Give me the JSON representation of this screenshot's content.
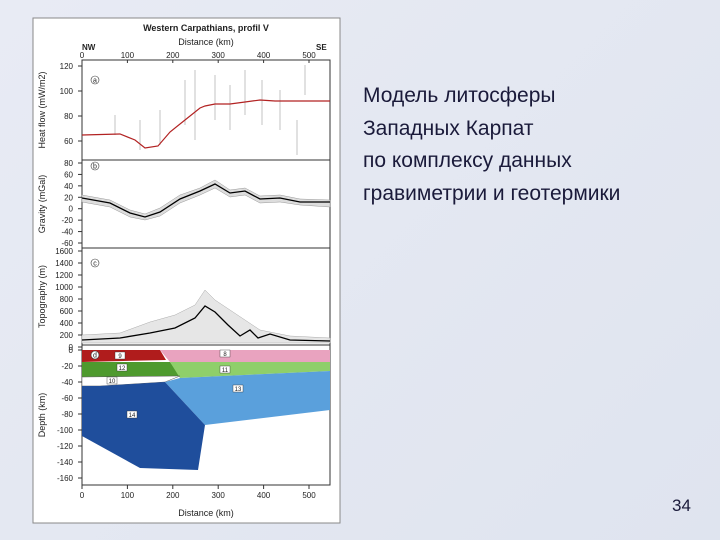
{
  "figure": {
    "title": "Western Carpathians, profil V",
    "top_label": "Distance (km)",
    "nw": "NW",
    "se": "SE",
    "xticks": [
      0,
      100,
      200,
      300,
      400,
      500
    ],
    "bottom_label": "Distance (km)",
    "panels": [
      {
        "letter": "a",
        "ylabel": "Heat flow (mW/m2)",
        "yticks": [
          120,
          100,
          80,
          60
        ]
      },
      {
        "letter": "b",
        "ylabel": "Gravity (mGal)",
        "yticks": [
          80,
          60,
          40,
          20,
          0,
          -20,
          -40,
          -60
        ]
      },
      {
        "letter": "c",
        "ylabel": "Topography (m)",
        "yticks": [
          1600,
          1400,
          1200,
          1000,
          800,
          600,
          400,
          200,
          0
        ]
      },
      {
        "letter": "d",
        "ylabel": "Depth (km)",
        "yticks": [
          0,
          -20,
          -40,
          -60,
          -80,
          -100,
          -120,
          -140,
          -160
        ],
        "bodies": [
          "9",
          "8",
          "12",
          "11",
          "10",
          "13",
          "14"
        ]
      }
    ]
  },
  "text": {
    "lines": [
      "Модель литосферы",
      "Западных Карпат",
      "по комплексу данных",
      "гравиметрии и геотермики"
    ],
    "page_number": "34"
  }
}
